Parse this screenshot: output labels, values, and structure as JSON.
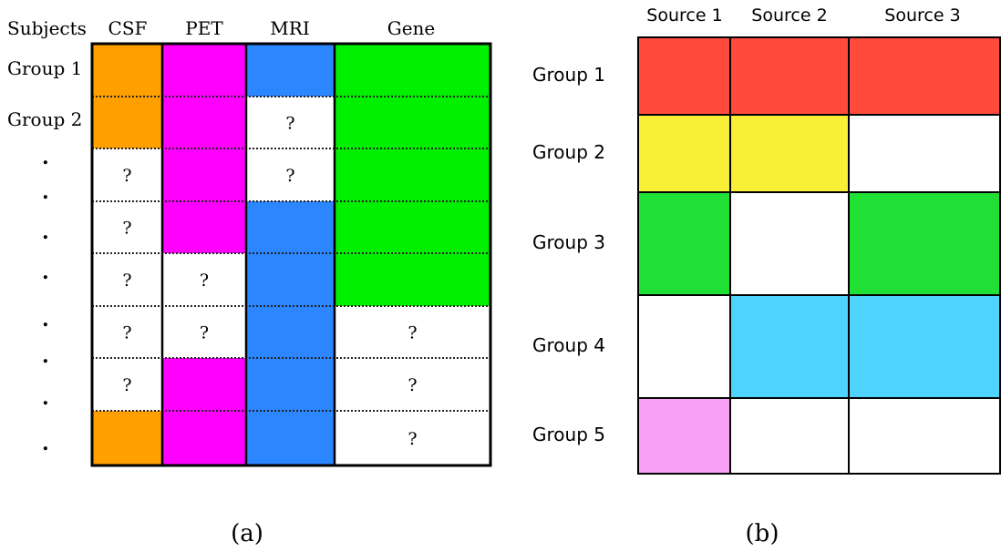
{
  "panel_a": {
    "caption": "(a)",
    "header": {
      "row_label": "Subjects",
      "columns": [
        "CSF",
        "PET",
        "MRI",
        "Gene"
      ]
    },
    "row_labels": [
      "Group 1",
      "Group 2"
    ],
    "dots": [
      ".",
      ".",
      ".",
      ".",
      ".",
      ".",
      ".",
      "."
    ],
    "missing_symbol": "?",
    "column_colors": {
      "CSF": "#ffa000",
      "PET": "#ff00ff",
      "MRI": "#2b86ff",
      "Gene": "#00f000"
    },
    "availability": [
      [
        1,
        1,
        1,
        1
      ],
      [
        1,
        1,
        0,
        1
      ],
      [
        0,
        1,
        0,
        1
      ],
      [
        0,
        1,
        1,
        1
      ],
      [
        0,
        0,
        1,
        1
      ],
      [
        0,
        0,
        1,
        0
      ],
      [
        0,
        1,
        1,
        0
      ],
      [
        1,
        1,
        1,
        0
      ]
    ]
  },
  "panel_b": {
    "caption": "(b)",
    "columns": [
      "Source 1",
      "Source 2",
      "Source 3"
    ],
    "groups": [
      "Group 1",
      "Group 2",
      "Group 3",
      "Group 4",
      "Group 5"
    ],
    "group_colors": [
      "#ff4a3c",
      "#f8ef36",
      "#20e035",
      "#4dd3fd",
      "#f8a0f6"
    ],
    "availability": [
      [
        1,
        1,
        1
      ],
      [
        1,
        1,
        0
      ],
      [
        1,
        0,
        1
      ],
      [
        0,
        1,
        1
      ],
      [
        1,
        0,
        0
      ]
    ]
  }
}
